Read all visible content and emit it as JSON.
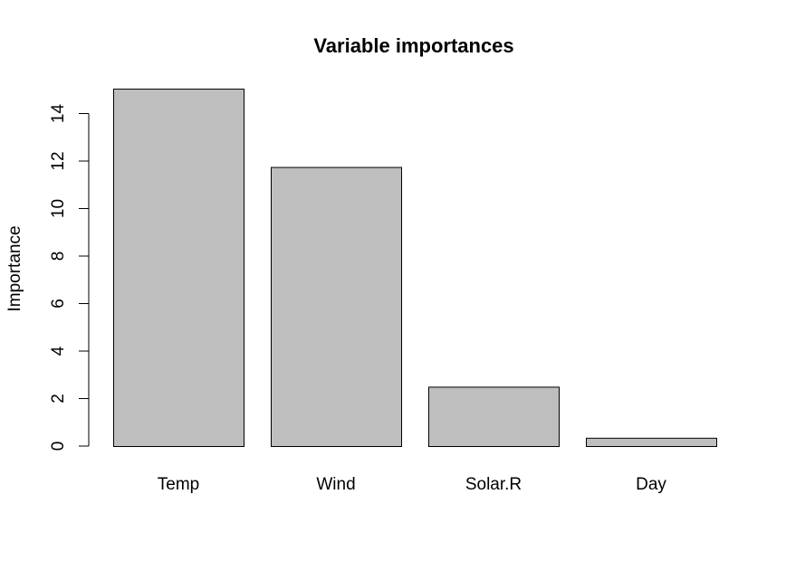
{
  "chart_data": {
    "type": "bar",
    "title": "Variable importances",
    "xlabel": "",
    "ylabel": "Importance",
    "categories": [
      "Temp",
      "Wind",
      "Solar.R",
      "Day"
    ],
    "values": [
      15.05,
      11.75,
      2.5,
      0.35
    ],
    "yticks": [
      "0",
      "2",
      "4",
      "6",
      "8",
      "10",
      "12",
      "14"
    ],
    "ylim": [
      0,
      15.05
    ],
    "grid": false,
    "legend": "none",
    "bar_color": "#bebebe",
    "border_color": "#000000"
  }
}
